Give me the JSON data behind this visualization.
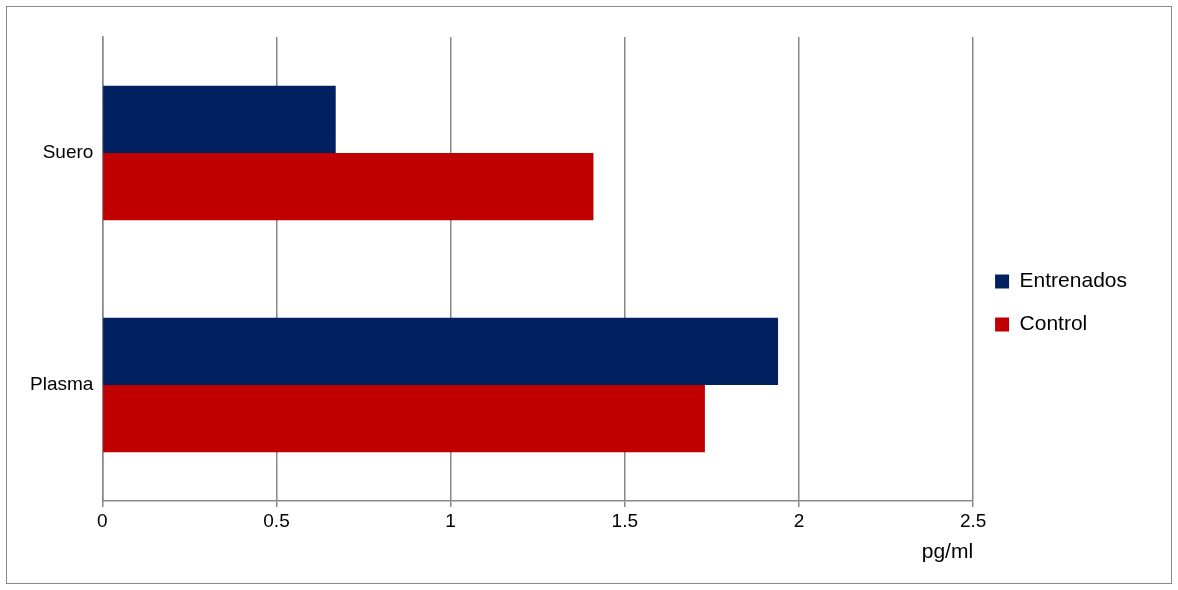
{
  "chart_data": {
    "type": "bar",
    "orientation": "horizontal",
    "categories": [
      "Suero",
      "Plasma"
    ],
    "series": [
      {
        "name": "Entrenados",
        "color": "#002060",
        "values": [
          0.67,
          1.94
        ]
      },
      {
        "name": "Control",
        "color": "#c00000",
        "values": [
          1.41,
          1.73
        ]
      }
    ],
    "xlabel": "pg/ml",
    "xlim": [
      0,
      2.5
    ],
    "xticks": [
      0,
      0.5,
      1,
      1.5,
      2,
      2.5
    ],
    "grid": "x",
    "legend": "right"
  }
}
